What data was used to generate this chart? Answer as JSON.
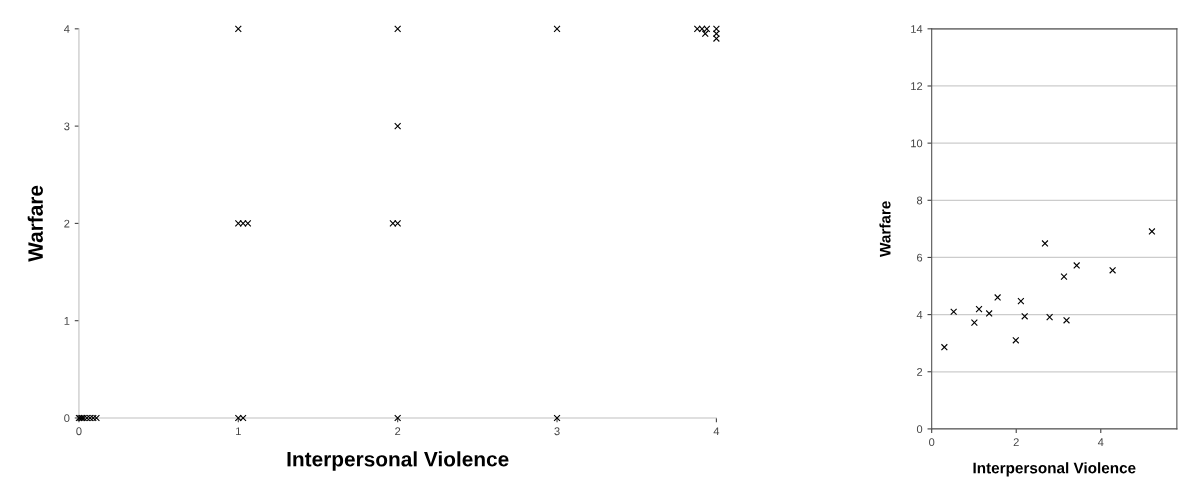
{
  "chart_data": [
    {
      "type": "scatter",
      "xlabel": "Interpersonal Violence",
      "ylabel": "Warfare",
      "xlim": [
        0,
        4
      ],
      "ylim": [
        0,
        4
      ],
      "xticks": [
        0,
        1,
        2,
        3,
        4
      ],
      "yticks": [
        0,
        1,
        2,
        3,
        4
      ],
      "grid": false,
      "marker": "cross",
      "series": [
        {
          "color": "#000000",
          "x": [
            1,
            2,
            3,
            2,
            1,
            1.03,
            1.06,
            1.97,
            2,
            1,
            1.03,
            2,
            3,
            0,
            0.01,
            0.02,
            0.03,
            0.05,
            0.07,
            0.09,
            0.11,
            3.88,
            3.91,
            3.94,
            4,
            3.93,
            4,
            4
          ],
          "values": [
            4,
            4,
            4,
            3,
            2,
            2,
            2,
            2,
            2,
            0,
            0,
            0,
            0,
            0,
            0,
            0,
            0,
            0,
            0,
            0,
            0,
            4,
            4,
            4,
            4,
            3.95,
            3.95,
            3.9
          ]
        }
      ]
    },
    {
      "type": "scatter",
      "xlabel": "Interpersonal Violence",
      "ylabel": "Warfare",
      "xlim": [
        0,
        5.8
      ],
      "ylim": [
        0,
        14
      ],
      "xticks": [
        0,
        2,
        4
      ],
      "yticks": [
        0,
        2,
        4,
        6,
        8,
        10,
        12,
        14
      ],
      "grid": "y",
      "marker": "cross",
      "series": [
        {
          "color": "#000000",
          "x": [
            0.3,
            0.52,
            1.01,
            1.12,
            1.36,
            1.56,
            1.99,
            2.11,
            2.2,
            2.68,
            2.79,
            3.13,
            3.19,
            3.43,
            4.28,
            5.21
          ],
          "values": [
            2.86,
            4.1,
            3.72,
            4.19,
            4.04,
            4.6,
            3.1,
            4.47,
            3.94,
            6.49,
            3.91,
            5.33,
            3.8,
            5.72,
            5.55,
            6.91
          ]
        }
      ]
    }
  ]
}
